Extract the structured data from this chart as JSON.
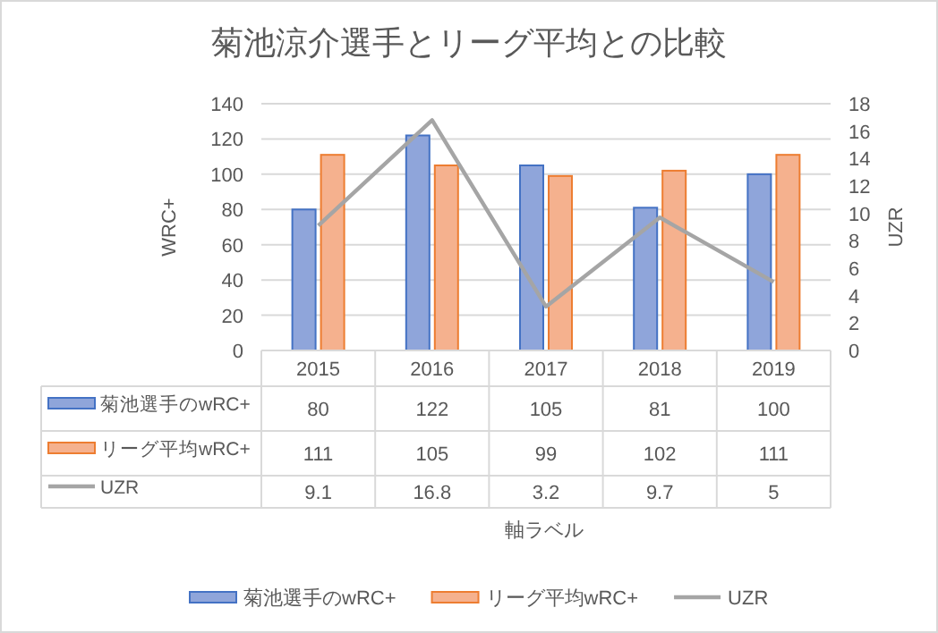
{
  "chart_data": {
    "type": "bar",
    "title": "菊池涼介選手とリーグ平均との比較",
    "annotations": [
      "軸ラベル"
    ],
    "ylabel": "WRC+",
    "y2label": "UZR",
    "categories": [
      "2015",
      "2016",
      "2017",
      "2018",
      "2019"
    ],
    "series": [
      {
        "name": "菊池選手のwRC+",
        "color": "#8fa5da",
        "values": [
          80,
          122,
          105,
          81,
          100
        ]
      },
      {
        "name": "リーグ平均wRC+",
        "color": "#f5b18e",
        "values": [
          111,
          105,
          99,
          102,
          111
        ]
      },
      {
        "name": "UZR",
        "type": "line",
        "axis": "y2",
        "color": "#a5a5a5",
        "values": [
          9.1,
          16.8,
          3.2,
          9.7,
          5
        ]
      }
    ],
    "ylim": [
      0,
      140
    ],
    "yticks": [
      0,
      20,
      40,
      60,
      80,
      100,
      120,
      140
    ],
    "y2lim": [
      0,
      18
    ],
    "y2ticks": [
      0,
      2,
      4,
      6,
      8,
      10,
      12,
      14,
      16,
      18
    ],
    "grid": "y",
    "legend": "bottom",
    "data_labels": true
  }
}
